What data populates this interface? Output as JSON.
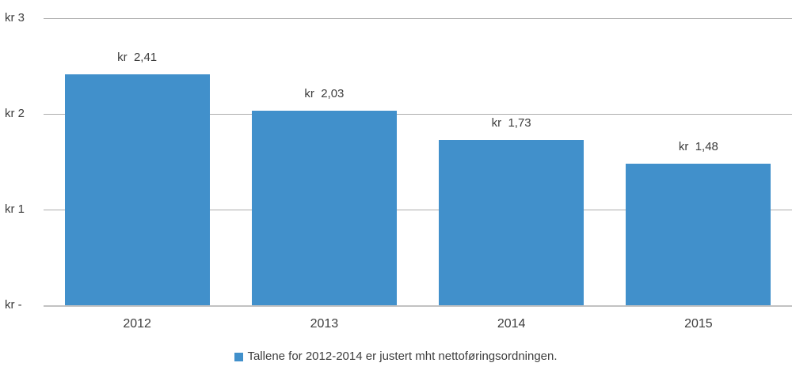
{
  "chart_data": {
    "type": "bar",
    "title": "",
    "xlabel": "",
    "ylabel": "",
    "categories": [
      "2012",
      "2013",
      "2014",
      "2015"
    ],
    "values": [
      2.41,
      2.03,
      1.73,
      1.48
    ],
    "bar_labels": [
      "kr  2,41",
      "kr  2,03",
      "kr  1,73",
      "kr  1,48"
    ],
    "y_ticks": [
      {
        "value": 3,
        "label": "kr 3"
      },
      {
        "value": 2,
        "label": "kr 2"
      },
      {
        "value": 1,
        "label": "kr 1"
      },
      {
        "value": 0,
        "label": "kr -"
      }
    ],
    "ylim": [
      0,
      3
    ],
    "grid": true,
    "legend": "Tallene for 2012-2014 er justert mht nettoføringsordningen.",
    "legend_position": "bottom",
    "colors": {
      "bar": "#4190cb",
      "gridline": "#adadad",
      "baseline": "#c2c2c2",
      "text": "#3d3d3d",
      "background": "#ffffff"
    }
  }
}
